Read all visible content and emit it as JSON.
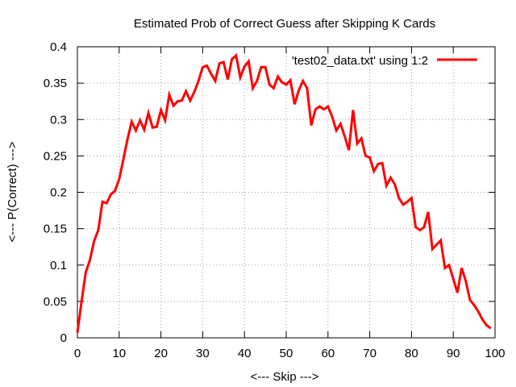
{
  "chart_data": {
    "type": "line",
    "title": "Estimated Prob of Correct Guess after Skipping K Cards",
    "xlabel": "<--- Skip --->",
    "ylabel": "<--- P(Correct) --->",
    "xlim": [
      0,
      100
    ],
    "ylim": [
      0,
      0.4
    ],
    "xticks": [
      "0",
      "10",
      "20",
      "30",
      "40",
      "50",
      "60",
      "70",
      "80",
      "90",
      "100"
    ],
    "yticks": [
      "0",
      "0.05",
      "0.1",
      "0.15",
      "0.2",
      "0.25",
      "0.3",
      "0.35",
      "0.4"
    ],
    "grid": true,
    "legend_position": "top-right",
    "series": [
      {
        "name": "'test02_data.txt' using 1:2",
        "color": "#ff0000",
        "x": [
          0,
          1,
          2,
          3,
          4,
          5,
          6,
          7,
          8,
          9,
          10,
          11,
          12,
          13,
          14,
          15,
          16,
          17,
          18,
          19,
          20,
          21,
          22,
          23,
          24,
          25,
          26,
          27,
          28,
          29,
          30,
          31,
          32,
          33,
          34,
          35,
          36,
          37,
          38,
          39,
          40,
          41,
          42,
          43,
          44,
          45,
          46,
          47,
          48,
          49,
          50,
          51,
          52,
          53,
          54,
          55,
          56,
          57,
          58,
          59,
          60,
          61,
          62,
          63,
          64,
          65,
          66,
          67,
          68,
          69,
          70,
          71,
          72,
          73,
          74,
          75,
          76,
          77,
          78,
          79,
          80,
          81,
          82,
          83,
          84,
          85,
          86,
          87,
          88,
          89,
          90,
          91,
          92,
          93,
          94,
          95,
          96,
          97,
          98,
          99
        ],
        "values": [
          0.007,
          0.05,
          0.09,
          0.107,
          0.133,
          0.148,
          0.187,
          0.185,
          0.197,
          0.202,
          0.218,
          0.245,
          0.273,
          0.297,
          0.285,
          0.299,
          0.286,
          0.309,
          0.289,
          0.29,
          0.313,
          0.299,
          0.334,
          0.319,
          0.325,
          0.326,
          0.339,
          0.326,
          0.338,
          0.353,
          0.372,
          0.374,
          0.363,
          0.353,
          0.377,
          0.379,
          0.355,
          0.383,
          0.388,
          0.358,
          0.373,
          0.38,
          0.343,
          0.353,
          0.372,
          0.372,
          0.348,
          0.343,
          0.359,
          0.351,
          0.348,
          0.354,
          0.321,
          0.34,
          0.353,
          0.343,
          0.292,
          0.314,
          0.318,
          0.314,
          0.318,
          0.304,
          0.285,
          0.294,
          0.277,
          0.258,
          0.313,
          0.267,
          0.274,
          0.25,
          0.248,
          0.229,
          0.239,
          0.24,
          0.209,
          0.22,
          0.211,
          0.192,
          0.183,
          0.187,
          0.192,
          0.152,
          0.148,
          0.152,
          0.173,
          0.122,
          0.128,
          0.134,
          0.096,
          0.1,
          0.081,
          0.062,
          0.096,
          0.078,
          0.052,
          0.045,
          0.036,
          0.025,
          0.017,
          0.013
        ]
      }
    ]
  }
}
